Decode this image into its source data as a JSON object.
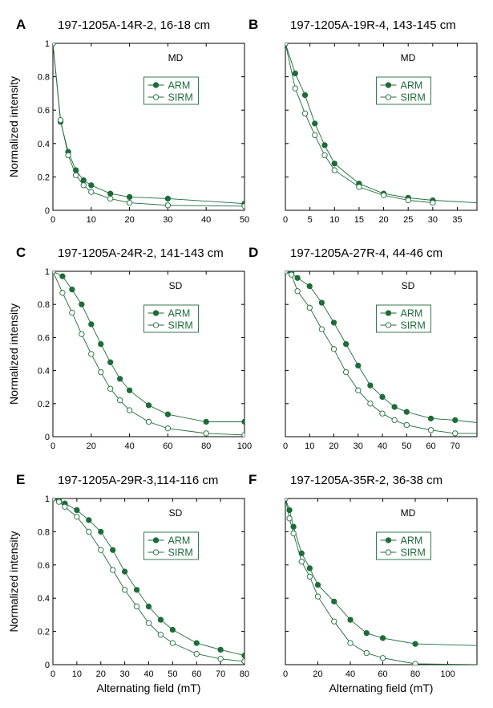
{
  "colors": {
    "series": "#1e6b3a",
    "axis": "#000000"
  },
  "chart_data": [
    {
      "type": "line",
      "panel_letter": "A",
      "title": "197-1205A-14R-2, 16-18 cm",
      "annotation": "MD",
      "xlabel": "",
      "ylabel": "Normalized intensity",
      "xlim": [
        0,
        50
      ],
      "ylim": [
        0,
        1
      ],
      "xticks": [
        0,
        10,
        20,
        30,
        40,
        50
      ],
      "yticks": [
        0,
        0.2,
        0.4,
        0.6,
        0.8,
        1
      ],
      "ytick_labels": [
        "0",
        "0.2",
        "0.4",
        "0.6",
        "0.8",
        "1"
      ],
      "legend": "right",
      "series": [
        {
          "name": "ARM",
          "marker": "filled",
          "x": [
            0,
            2,
            4,
            6,
            8,
            10,
            15,
            20,
            30,
            50
          ],
          "y": [
            1,
            0.53,
            0.35,
            0.24,
            0.18,
            0.15,
            0.1,
            0.08,
            0.07,
            0.04
          ]
        },
        {
          "name": "SIRM",
          "marker": "open",
          "x": [
            0,
            2,
            4,
            6,
            8,
            10,
            15,
            20,
            30,
            50
          ],
          "y": [
            1,
            0.54,
            0.33,
            0.21,
            0.15,
            0.11,
            0.07,
            0.045,
            0.03,
            0.025
          ]
        }
      ]
    },
    {
      "type": "line",
      "panel_letter": "B",
      "title": "197-1205A-19R-4, 143-145 cm",
      "annotation": "MD",
      "xlabel": "",
      "ylabel": "",
      "xlim": [
        0,
        39
      ],
      "ylim": [
        0,
        1
      ],
      "xticks": [
        0,
        5,
        10,
        15,
        20,
        25,
        30,
        35
      ],
      "yticks": [
        0,
        0.2,
        0.4,
        0.6,
        0.8,
        1
      ],
      "ytick_labels": [
        "",
        "",
        "",
        "",
        "",
        ""
      ],
      "legend": "right",
      "series": [
        {
          "name": "ARM",
          "marker": "filled",
          "x": [
            0,
            2,
            4,
            6,
            8,
            10,
            15,
            20,
            25,
            30,
            39
          ],
          "y": [
            1,
            0.82,
            0.69,
            0.52,
            0.39,
            0.28,
            0.16,
            0.1,
            0.075,
            0.06,
            0.045
          ]
        },
        {
          "name": "SIRM",
          "marker": "open",
          "x": [
            0,
            2,
            4,
            6,
            8,
            10,
            15,
            20,
            25,
            30
          ],
          "y": [
            1,
            0.73,
            0.58,
            0.45,
            0.33,
            0.24,
            0.14,
            0.09,
            0.06,
            0.045
          ]
        }
      ]
    },
    {
      "type": "line",
      "panel_letter": "C",
      "title": "197-1205A-24R-2, 141-143 cm",
      "annotation": "SD",
      "xlabel": "",
      "ylabel": "Normalized intensity",
      "xlim": [
        0,
        100
      ],
      "ylim": [
        0,
        1
      ],
      "xticks": [
        0,
        20,
        40,
        60,
        80,
        100
      ],
      "yticks": [
        0,
        0.2,
        0.4,
        0.6,
        0.8,
        1
      ],
      "ytick_labels": [
        "0",
        "0.2",
        "0.4",
        "0.6",
        "0.8",
        "1"
      ],
      "legend": "right",
      "series": [
        {
          "name": "ARM",
          "marker": "filled",
          "x": [
            0,
            5,
            10,
            15,
            20,
            25,
            30,
            35,
            40,
            50,
            60,
            80,
            100
          ],
          "y": [
            1,
            0.97,
            0.89,
            0.8,
            0.68,
            0.56,
            0.45,
            0.35,
            0.28,
            0.19,
            0.135,
            0.09,
            0.09
          ]
        },
        {
          "name": "SIRM",
          "marker": "open",
          "x": [
            0,
            5,
            10,
            15,
            20,
            25,
            30,
            35,
            40,
            50,
            60,
            80,
            100
          ],
          "y": [
            1,
            0.87,
            0.75,
            0.62,
            0.5,
            0.39,
            0.29,
            0.22,
            0.16,
            0.09,
            0.05,
            0.02,
            0.01
          ]
        }
      ]
    },
    {
      "type": "line",
      "panel_letter": "D",
      "title": "197-1205A-27R-4, 44-46 cm",
      "annotation": "SD",
      "xlabel": "",
      "ylabel": "",
      "xlim": [
        0,
        79
      ],
      "ylim": [
        0,
        1
      ],
      "xticks": [
        0,
        10,
        20,
        30,
        40,
        50,
        60,
        70
      ],
      "yticks": [
        0,
        0.2,
        0.4,
        0.6,
        0.8,
        1
      ],
      "ytick_labels": [
        "",
        "",
        "",
        "",
        "",
        ""
      ],
      "legend": "right",
      "series": [
        {
          "name": "ARM",
          "marker": "filled",
          "x": [
            0,
            2.5,
            5,
            10,
            15,
            20,
            25,
            30,
            35,
            40,
            45,
            50,
            60,
            70,
            79
          ],
          "y": [
            1,
            0.99,
            0.96,
            0.91,
            0.81,
            0.69,
            0.56,
            0.43,
            0.31,
            0.24,
            0.18,
            0.15,
            0.11,
            0.1,
            0.085
          ]
        },
        {
          "name": "SIRM",
          "marker": "open",
          "x": [
            0,
            2.5,
            5,
            10,
            15,
            20,
            25,
            30,
            35,
            40,
            45,
            50,
            60,
            70,
            79
          ],
          "y": [
            1,
            0.98,
            0.88,
            0.78,
            0.65,
            0.53,
            0.39,
            0.28,
            0.2,
            0.14,
            0.1,
            0.07,
            0.04,
            0.02,
            0.02
          ]
        }
      ]
    },
    {
      "type": "line",
      "panel_letter": "E",
      "title": "197-1205A-29R-3,114-116 cm",
      "annotation": "SD",
      "xlabel": "Alternating field (mT)",
      "ylabel": "Normalized intensity",
      "xlim": [
        0,
        80
      ],
      "ylim": [
        0,
        1
      ],
      "xticks": [
        0,
        10,
        20,
        30,
        40,
        50,
        60,
        70,
        80
      ],
      "yticks": [
        0,
        0.2,
        0.4,
        0.6,
        0.8,
        1
      ],
      "ytick_labels": [
        "0",
        "0.2",
        "0.4",
        "0.6",
        "0.8",
        "1"
      ],
      "legend": "right",
      "series": [
        {
          "name": "ARM",
          "marker": "filled",
          "x": [
            0,
            2.5,
            5,
            10,
            15,
            20,
            25,
            30,
            35,
            40,
            45,
            50,
            60,
            70,
            80
          ],
          "y": [
            1,
            0.99,
            0.97,
            0.93,
            0.87,
            0.8,
            0.69,
            0.56,
            0.45,
            0.35,
            0.27,
            0.21,
            0.13,
            0.09,
            0.055
          ]
        },
        {
          "name": "SIRM",
          "marker": "open",
          "x": [
            0,
            2.5,
            5,
            10,
            15,
            20,
            25,
            30,
            35,
            40,
            45,
            50,
            60,
            70,
            80
          ],
          "y": [
            1,
            0.98,
            0.95,
            0.89,
            0.8,
            0.69,
            0.57,
            0.45,
            0.35,
            0.25,
            0.18,
            0.13,
            0.065,
            0.035,
            0.02
          ]
        }
      ]
    },
    {
      "type": "line",
      "panel_letter": "F",
      "title": "197-1205A-35R-2, 36-38 cm",
      "annotation": "MD",
      "xlabel": "Alternating field (mT)",
      "ylabel": "",
      "xlim": [
        0,
        118
      ],
      "ylim": [
        0,
        1
      ],
      "xticks": [
        0,
        20,
        40,
        60,
        80,
        100
      ],
      "yticks": [
        0,
        0.2,
        0.4,
        0.6,
        0.8,
        1
      ],
      "ytick_labels": [
        "",
        "",
        "",
        "",
        "",
        ""
      ],
      "legend": "right",
      "series": [
        {
          "name": "ARM",
          "marker": "filled",
          "x": [
            0,
            2.5,
            5,
            10,
            15,
            20,
            30,
            40,
            50,
            60,
            80,
            118
          ],
          "y": [
            1,
            0.93,
            0.83,
            0.67,
            0.58,
            0.48,
            0.38,
            0.27,
            0.19,
            0.16,
            0.125,
            0.115
          ]
        },
        {
          "name": "SIRM",
          "marker": "open",
          "x": [
            0,
            2.5,
            5,
            10,
            15,
            20,
            30,
            40,
            50,
            60,
            80,
            118
          ],
          "y": [
            1,
            0.88,
            0.79,
            0.62,
            0.53,
            0.41,
            0.26,
            0.13,
            0.07,
            0.04,
            0.005,
            0.0
          ]
        }
      ]
    }
  ]
}
